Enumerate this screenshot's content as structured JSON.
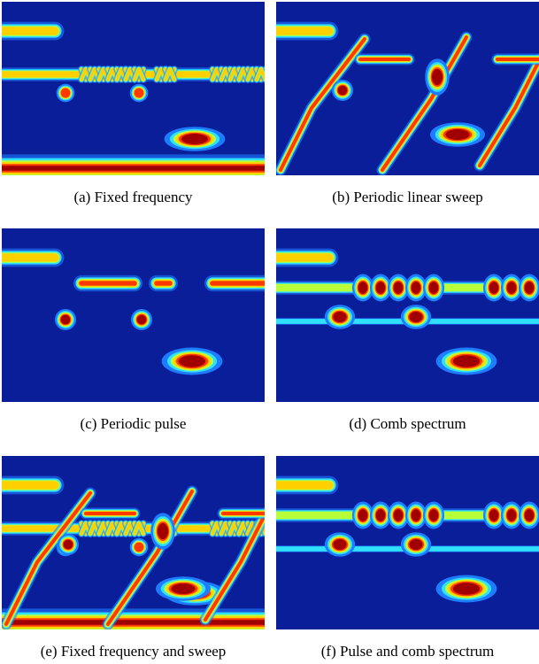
{
  "figure": {
    "panels": [
      {
        "caption": "(a)  Fixed frequency"
      },
      {
        "caption": "(b)  Periodic linear sweep"
      },
      {
        "caption": "(c)  Periodic pulse"
      },
      {
        "caption": "(d)  Comb spectrum"
      },
      {
        "caption": "(e)  Fixed frequency and sweep"
      },
      {
        "caption": "(f)  Pulse and comb spectrum"
      }
    ]
  }
}
